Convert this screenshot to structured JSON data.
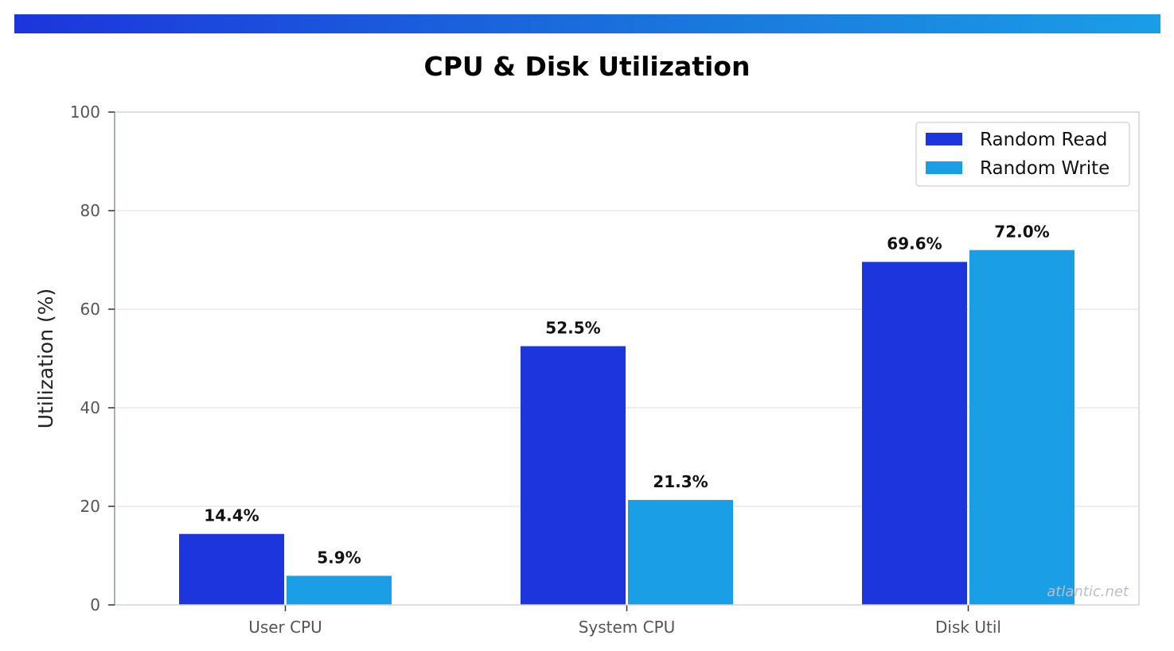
{
  "header": {
    "accent_from": "#1c35dc",
    "accent_to": "#1a9ee6"
  },
  "chart_data": {
    "type": "bar",
    "title": "CPU & Disk Utilization",
    "xlabel": "",
    "ylabel": "Utilization (%)",
    "ylim": [
      0,
      100
    ],
    "yticks": [
      "0",
      "20",
      "40",
      "60",
      "80",
      "100"
    ],
    "categories": [
      "User CPU",
      "System CPU",
      "Disk Util"
    ],
    "series": [
      {
        "name": "Random Read",
        "color": "#1c35dc",
        "values": [
          14.4,
          52.5,
          69.6
        ],
        "labels": [
          "14.4%",
          "52.5%",
          "69.6%"
        ]
      },
      {
        "name": "Random Write",
        "color": "#1a9ee6",
        "values": [
          5.9,
          21.3,
          72.0
        ],
        "labels": [
          "5.9%",
          "21.3%",
          "72.0%"
        ]
      }
    ],
    "grid": true,
    "legend": "top-right",
    "watermark": "atlantic.net"
  }
}
